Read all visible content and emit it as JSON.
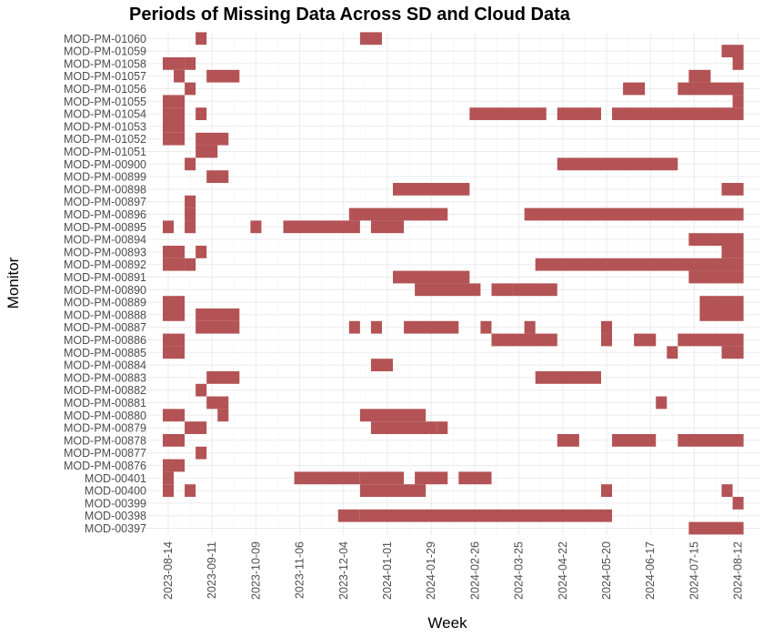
{
  "chart_data": {
    "type": "heatmap",
    "title": "Periods of Missing Data Across SD and Cloud Data",
    "xlabel": "Week",
    "ylabel": "Monitor",
    "x_unit": "week (week starting date)",
    "x_tick_labels": [
      "2023-08-14",
      "2023-09-11",
      "2023-10-09",
      "2023-11-06",
      "2023-12-04",
      "2024-01-01",
      "2024-01-29",
      "2024-02-26",
      "2024-03-25",
      "2024-04-22",
      "2024-05-20",
      "2024-06-17",
      "2024-07-15",
      "2024-08-12"
    ],
    "xlim": [
      "2023-08-07",
      "2024-08-19"
    ],
    "grid": true,
    "color": "#b35355",
    "monitors": [
      "MOD-PM-01060",
      "MOD-PM-01059",
      "MOD-PM-01058",
      "MOD-PM-01057",
      "MOD-PM-01056",
      "MOD-PM-01055",
      "MOD-PM-01054",
      "MOD-PM-01053",
      "MOD-PM-01052",
      "MOD-PM-01051",
      "MOD-PM-00900",
      "MOD-PM-00899",
      "MOD-PM-00898",
      "MOD-PM-00897",
      "MOD-PM-00896",
      "MOD-PM-00895",
      "MOD-PM-00894",
      "MOD-PM-00893",
      "MOD-PM-00892",
      "MOD-PM-00891",
      "MOD-PM-00890",
      "MOD-PM-00889",
      "MOD-PM-00888",
      "MOD-PM-00887",
      "MOD-PM-00886",
      "MOD-PM-00885",
      "MOD-PM-00884",
      "MOD-PM-00883",
      "MOD-PM-00882",
      "MOD-PM-00881",
      "MOD-PM-00880",
      "MOD-PM-00879",
      "MOD-PM-00878",
      "MOD-PM-00877",
      "MOD-PM-00876",
      "MOD-00401",
      "MOD-00400",
      "MOD-00399",
      "MOD-00398",
      "MOD-00397"
    ],
    "missing_periods": [
      {
        "monitor": "MOD-PM-01060",
        "ranges": [
          [
            "2023-09-04",
            "2023-09-04"
          ],
          [
            "2023-12-18",
            "2023-12-25"
          ]
        ]
      },
      {
        "monitor": "MOD-PM-01059",
        "ranges": [
          [
            "2024-08-05",
            "2024-08-12"
          ]
        ]
      },
      {
        "monitor": "MOD-PM-01058",
        "ranges": [
          [
            "2023-08-14",
            "2023-08-21"
          ],
          [
            "2023-08-28",
            "2023-08-28"
          ],
          [
            "2024-08-12",
            "2024-08-12"
          ]
        ]
      },
      {
        "monitor": "MOD-PM-01057",
        "ranges": [
          [
            "2023-08-21",
            "2023-08-21"
          ],
          [
            "2023-09-11",
            "2023-09-25"
          ],
          [
            "2024-07-15",
            "2024-07-22"
          ]
        ]
      },
      {
        "monitor": "MOD-PM-01056",
        "ranges": [
          [
            "2023-08-28",
            "2023-08-28"
          ],
          [
            "2024-06-03",
            "2024-06-10"
          ],
          [
            "2024-07-08",
            "2024-08-12"
          ]
        ]
      },
      {
        "monitor": "MOD-PM-01055",
        "ranges": [
          [
            "2023-08-14",
            "2023-08-21"
          ],
          [
            "2024-08-12",
            "2024-08-12"
          ]
        ]
      },
      {
        "monitor": "MOD-PM-01054",
        "ranges": [
          [
            "2023-08-14",
            "2023-08-21"
          ],
          [
            "2023-09-04",
            "2023-09-04"
          ],
          [
            "2024-02-26",
            "2024-04-08"
          ],
          [
            "2024-04-22",
            "2024-05-13"
          ],
          [
            "2024-05-27",
            "2024-08-12"
          ]
        ]
      },
      {
        "monitor": "MOD-PM-01053",
        "ranges": [
          [
            "2023-08-14",
            "2023-08-21"
          ]
        ]
      },
      {
        "monitor": "MOD-PM-01052",
        "ranges": [
          [
            "2023-08-14",
            "2023-08-21"
          ],
          [
            "2023-09-04",
            "2023-09-18"
          ]
        ]
      },
      {
        "monitor": "MOD-PM-01051",
        "ranges": [
          [
            "2023-09-04",
            "2023-09-11"
          ]
        ]
      },
      {
        "monitor": "MOD-PM-00900",
        "ranges": [
          [
            "2023-08-28",
            "2023-08-28"
          ],
          [
            "2024-04-22",
            "2024-07-01"
          ]
        ]
      },
      {
        "monitor": "MOD-PM-00899",
        "ranges": [
          [
            "2023-09-11",
            "2023-09-18"
          ]
        ]
      },
      {
        "monitor": "MOD-PM-00898",
        "ranges": [
          [
            "2024-01-08",
            "2024-02-19"
          ],
          [
            "2024-08-05",
            "2024-08-12"
          ]
        ]
      },
      {
        "monitor": "MOD-PM-00897",
        "ranges": [
          [
            "2023-08-28",
            "2023-08-28"
          ]
        ]
      },
      {
        "monitor": "MOD-PM-00896",
        "ranges": [
          [
            "2023-08-28",
            "2023-08-28"
          ],
          [
            "2023-12-11",
            "2024-02-05"
          ],
          [
            "2024-04-01",
            "2024-08-12"
          ]
        ]
      },
      {
        "monitor": "MOD-PM-00895",
        "ranges": [
          [
            "2023-08-14",
            "2023-08-14"
          ],
          [
            "2023-08-28",
            "2023-08-28"
          ],
          [
            "2023-10-09",
            "2023-10-09"
          ],
          [
            "2023-10-30",
            "2023-12-11"
          ],
          [
            "2023-12-25",
            "2024-01-08"
          ]
        ]
      },
      {
        "monitor": "MOD-PM-00894",
        "ranges": [
          [
            "2024-07-15",
            "2024-08-12"
          ]
        ]
      },
      {
        "monitor": "MOD-PM-00893",
        "ranges": [
          [
            "2023-08-14",
            "2023-08-21"
          ],
          [
            "2023-09-04",
            "2023-09-04"
          ],
          [
            "2024-08-05",
            "2024-08-12"
          ]
        ]
      },
      {
        "monitor": "MOD-PM-00892",
        "ranges": [
          [
            "2023-08-14",
            "2023-08-21"
          ],
          [
            "2023-08-28",
            "2023-08-28"
          ],
          [
            "2024-04-08",
            "2024-08-12"
          ]
        ]
      },
      {
        "monitor": "MOD-PM-00891",
        "ranges": [
          [
            "2024-01-08",
            "2024-02-19"
          ],
          [
            "2024-07-15",
            "2024-08-12"
          ]
        ]
      },
      {
        "monitor": "MOD-PM-00890",
        "ranges": [
          [
            "2024-01-22",
            "2024-02-26"
          ],
          [
            "2024-03-11",
            "2024-03-18"
          ],
          [
            "2024-03-25",
            "2024-04-15"
          ]
        ]
      },
      {
        "monitor": "MOD-PM-00889",
        "ranges": [
          [
            "2023-08-14",
            "2023-08-21"
          ],
          [
            "2024-07-22",
            "2024-08-12"
          ]
        ]
      },
      {
        "monitor": "MOD-PM-00888",
        "ranges": [
          [
            "2023-08-14",
            "2023-08-21"
          ],
          [
            "2023-09-04",
            "2023-09-25"
          ],
          [
            "2024-07-22",
            "2024-08-12"
          ]
        ]
      },
      {
        "monitor": "MOD-PM-00887",
        "ranges": [
          [
            "2023-09-04",
            "2023-09-25"
          ],
          [
            "2023-12-11",
            "2023-12-11"
          ],
          [
            "2023-12-25",
            "2023-12-25"
          ],
          [
            "2024-01-15",
            "2024-02-12"
          ],
          [
            "2024-03-04",
            "2024-03-04"
          ],
          [
            "2024-04-01",
            "2024-04-01"
          ],
          [
            "2024-05-20",
            "2024-05-20"
          ]
        ]
      },
      {
        "monitor": "MOD-PM-00886",
        "ranges": [
          [
            "2023-08-14",
            "2023-08-21"
          ],
          [
            "2024-03-11",
            "2024-04-15"
          ],
          [
            "2024-05-20",
            "2024-05-20"
          ],
          [
            "2024-06-10",
            "2024-06-17"
          ],
          [
            "2024-07-08",
            "2024-08-12"
          ]
        ]
      },
      {
        "monitor": "MOD-PM-00885",
        "ranges": [
          [
            "2023-08-14",
            "2023-08-21"
          ],
          [
            "2024-07-01",
            "2024-07-01"
          ],
          [
            "2024-08-05",
            "2024-08-12"
          ]
        ]
      },
      {
        "monitor": "MOD-PM-00884",
        "ranges": [
          [
            "2023-12-25",
            "2024-01-01"
          ]
        ]
      },
      {
        "monitor": "MOD-PM-00883",
        "ranges": [
          [
            "2023-09-11",
            "2023-09-25"
          ],
          [
            "2024-04-08",
            "2024-05-13"
          ]
        ]
      },
      {
        "monitor": "MOD-PM-00882",
        "ranges": [
          [
            "2023-09-04",
            "2023-09-04"
          ]
        ]
      },
      {
        "monitor": "MOD-PM-00881",
        "ranges": [
          [
            "2023-09-11",
            "2023-09-18"
          ],
          [
            "2024-06-24",
            "2024-06-24"
          ]
        ]
      },
      {
        "monitor": "MOD-PM-00880",
        "ranges": [
          [
            "2023-08-14",
            "2023-08-21"
          ],
          [
            "2023-09-18",
            "2023-09-18"
          ],
          [
            "2023-12-18",
            "2024-01-22"
          ]
        ]
      },
      {
        "monitor": "MOD-PM-00879",
        "ranges": [
          [
            "2023-08-28",
            "2023-09-04"
          ],
          [
            "2023-12-25",
            "2024-01-29"
          ],
          [
            "2024-02-05",
            "2024-02-05"
          ]
        ]
      },
      {
        "monitor": "MOD-PM-00878",
        "ranges": [
          [
            "2023-08-14",
            "2023-08-21"
          ],
          [
            "2024-04-22",
            "2024-04-29"
          ],
          [
            "2024-05-27",
            "2024-06-17"
          ],
          [
            "2024-07-08",
            "2024-08-12"
          ]
        ]
      },
      {
        "monitor": "MOD-PM-00877",
        "ranges": [
          [
            "2023-09-04",
            "2023-09-04"
          ]
        ]
      },
      {
        "monitor": "MOD-PM-00876",
        "ranges": [
          [
            "2023-08-14",
            "2023-08-21"
          ]
        ]
      },
      {
        "monitor": "MOD-00401",
        "ranges": [
          [
            "2023-08-14",
            "2023-08-14"
          ],
          [
            "2023-11-06",
            "2023-12-11"
          ],
          [
            "2023-12-18",
            "2024-01-08"
          ],
          [
            "2024-01-22",
            "2024-02-05"
          ],
          [
            "2024-02-19",
            "2024-03-04"
          ]
        ]
      },
      {
        "monitor": "MOD-00400",
        "ranges": [
          [
            "2023-08-14",
            "2023-08-14"
          ],
          [
            "2023-08-28",
            "2023-08-28"
          ],
          [
            "2023-12-18",
            "2024-01-22"
          ],
          [
            "2024-05-20",
            "2024-05-20"
          ],
          [
            "2024-08-05",
            "2024-08-05"
          ]
        ]
      },
      {
        "monitor": "MOD-00399",
        "ranges": [
          [
            "2024-08-12",
            "2024-08-12"
          ]
        ]
      },
      {
        "monitor": "MOD-00398",
        "ranges": [
          [
            "2023-12-04",
            "2023-12-11"
          ],
          [
            "2023-12-18",
            "2024-05-20"
          ]
        ]
      },
      {
        "monitor": "MOD-00397",
        "ranges": [
          [
            "2024-07-15",
            "2024-08-12"
          ]
        ]
      }
    ]
  }
}
